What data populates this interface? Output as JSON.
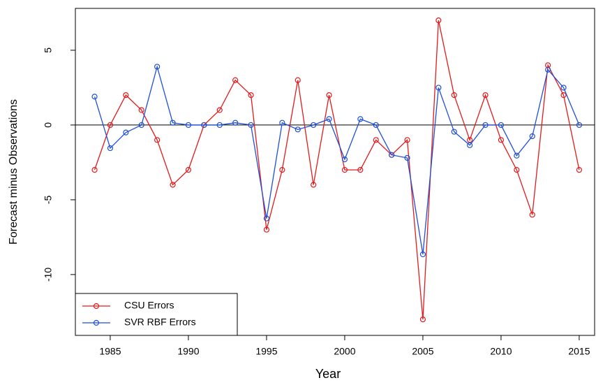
{
  "chart_data": {
    "type": "line",
    "x_label": "Year",
    "y_label": "Forecast minus Observations",
    "x": [
      1984,
      1985,
      1986,
      1987,
      1988,
      1989,
      1990,
      1991,
      1992,
      1993,
      1994,
      1995,
      1996,
      1997,
      1998,
      1999,
      2000,
      2001,
      2002,
      2003,
      2004,
      2005,
      2006,
      2007,
      2008,
      2009,
      2010,
      2011,
      2012,
      2013,
      2014,
      2015
    ],
    "series": [
      {
        "name": "CSU Errors",
        "color": "#e41a1c",
        "values": [
          -3,
          0,
          2,
          1,
          -1,
          -4,
          -3,
          0,
          1,
          3,
          2,
          -7,
          -3,
          3,
          -4,
          2,
          -3,
          -3,
          -1,
          -2,
          -1,
          -13,
          7,
          2,
          -1,
          2,
          -1,
          -3,
          -6,
          4,
          2,
          -3
        ]
      },
      {
        "name": "SVR RBF Errors",
        "color": "#1f4fd6",
        "values": [
          1.9,
          -1.55,
          -0.5,
          0,
          3.9,
          0.15,
          0,
          0,
          0,
          0.15,
          0,
          -6.25,
          0.15,
          -0.3,
          0,
          0.4,
          -2.3,
          0.4,
          0,
          -2,
          -2.2,
          -8.65,
          2.5,
          -0.45,
          -1.35,
          0,
          0,
          -2.05,
          -0.75,
          3.7,
          2.5,
          0
        ]
      }
    ],
    "xlim": [
      1982.77,
      2016.03
    ],
    "ylim": [
      -14.07,
      7.8
    ],
    "xticks": [
      1985,
      1990,
      1995,
      2000,
      2005,
      2010,
      2015
    ],
    "yticks": [
      -10,
      -5,
      0,
      5
    ],
    "hline": 0,
    "legend": "bottom-left"
  }
}
